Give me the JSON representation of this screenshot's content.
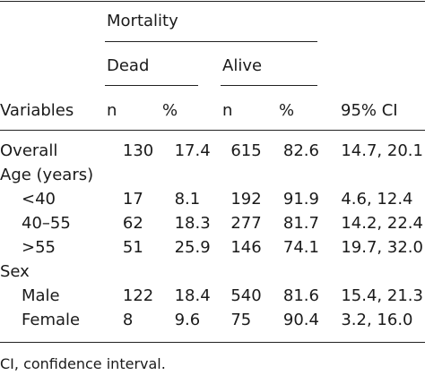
{
  "table": {
    "group_header": "Mortality",
    "subheaders": {
      "dead": "Dead",
      "alive": "Alive"
    },
    "columns": [
      "Variables",
      "n",
      "%",
      "n",
      "%",
      "95% CI"
    ],
    "rows": [
      {
        "label": "Overall",
        "indent": false,
        "cells": [
          "130",
          "17.4",
          "615",
          "82.6",
          "14.7, 20.1"
        ]
      },
      {
        "label": "Age (years)",
        "indent": false,
        "cells": [
          "",
          "",
          "",
          "",
          ""
        ]
      },
      {
        "label": "<40",
        "indent": true,
        "cells": [
          "17",
          "8.1",
          "192",
          "91.9",
          "4.6, 12.4"
        ]
      },
      {
        "label": "40–55",
        "indent": true,
        "cells": [
          "62",
          "18.3",
          "277",
          "81.7",
          "14.2, 22.4"
        ]
      },
      {
        "label": ">55",
        "indent": true,
        "cells": [
          "51",
          "25.9",
          "146",
          "74.1",
          "19.7, 32.0"
        ]
      },
      {
        "label": "Sex",
        "indent": false,
        "cells": [
          "",
          "",
          "",
          "",
          ""
        ]
      },
      {
        "label": "Male",
        "indent": true,
        "cells": [
          "122",
          "18.4",
          "540",
          "81.6",
          "15.4, 21.3"
        ]
      },
      {
        "label": "Female",
        "indent": true,
        "cells": [
          "8",
          "9.6",
          "75",
          "90.4",
          "3.2, 16.0"
        ]
      }
    ]
  },
  "footnote": "CI, confidence interval."
}
